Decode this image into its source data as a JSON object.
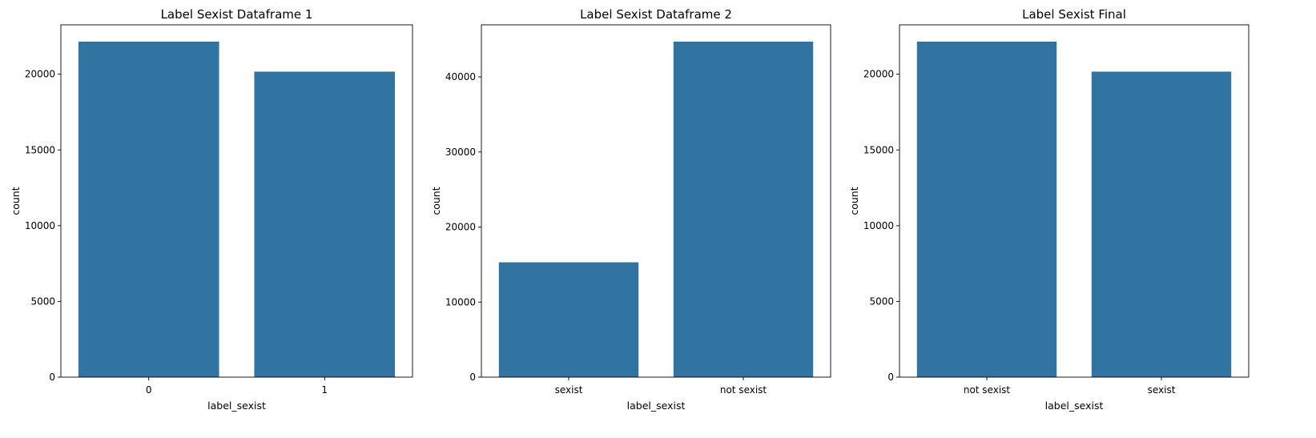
{
  "figure": {
    "background": "#ffffff",
    "bar_color": "#3274a1"
  },
  "chart_data": [
    {
      "type": "bar",
      "title": "Label Sexist Dataframe 1",
      "xlabel": "label_sexist",
      "ylabel": "count",
      "categories": [
        "0",
        "1"
      ],
      "values": [
        22150,
        20170
      ],
      "ylim": [
        0,
        23260
      ],
      "yticks": [
        0,
        5000,
        10000,
        15000,
        20000
      ],
      "ytick_labels": [
        "0",
        "5000",
        "10000",
        "15000",
        "20000"
      ],
      "grid": false,
      "legend": "none"
    },
    {
      "type": "bar",
      "title": "Label Sexist Dataframe 2",
      "xlabel": "label_sexist",
      "ylabel": "count",
      "categories": [
        "sexist",
        "not sexist"
      ],
      "values": [
        15300,
        44700
      ],
      "ylim": [
        0,
        46940
      ],
      "yticks": [
        0,
        10000,
        20000,
        30000,
        40000
      ],
      "ytick_labels": [
        "0",
        "10000",
        "20000",
        "30000",
        "40000"
      ],
      "grid": false,
      "legend": "none"
    },
    {
      "type": "bar",
      "title": "Label Sexist Final",
      "xlabel": "label_sexist",
      "ylabel": "count",
      "categories": [
        "not sexist",
        "sexist"
      ],
      "values": [
        22150,
        20170
      ],
      "ylim": [
        0,
        23260
      ],
      "yticks": [
        0,
        5000,
        10000,
        15000,
        20000
      ],
      "ytick_labels": [
        "0",
        "5000",
        "10000",
        "15000",
        "20000"
      ],
      "grid": false,
      "legend": "none"
    }
  ]
}
